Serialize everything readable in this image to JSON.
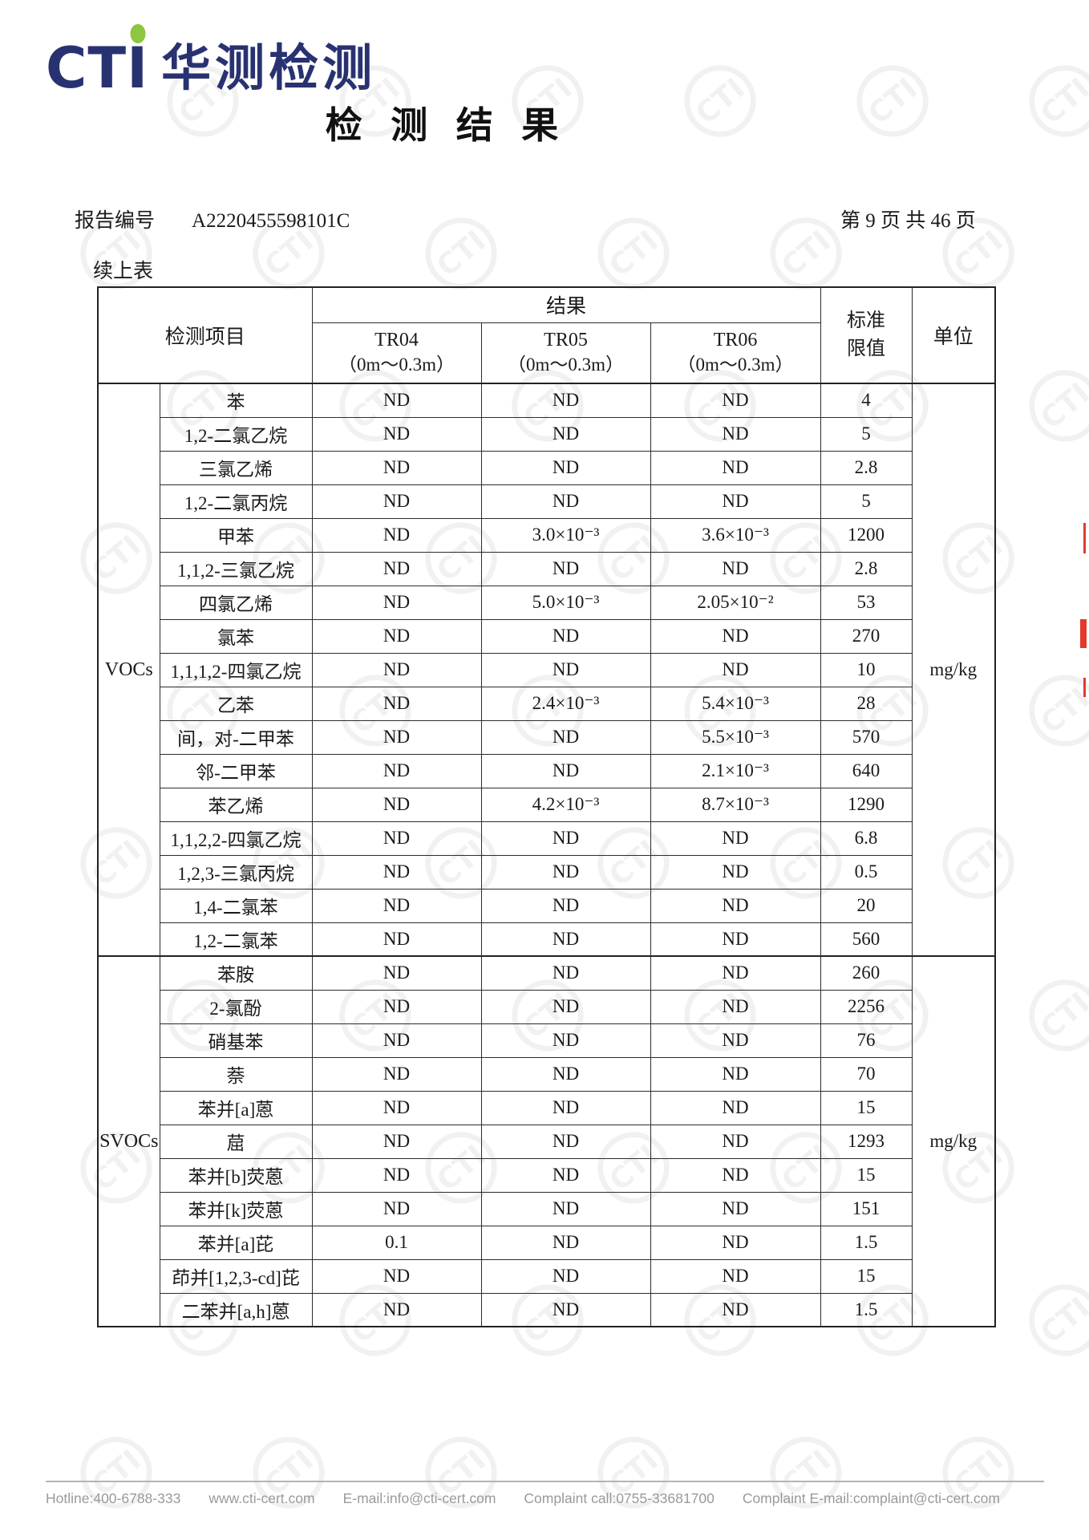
{
  "brand": {
    "logo_latin": "CTI",
    "logo_cn": "华测检测"
  },
  "title": "检 测 结 果",
  "report": {
    "no_label": "报告编号",
    "no_value": "A2220455598101C",
    "page_info": "第 9 页 共 46 页",
    "continued": "续上表"
  },
  "watermark": {
    "text": "CTI"
  },
  "colors": {
    "navy": "#293271",
    "green": "#8dc63f",
    "red": "#e23b2e",
    "footer_gray": "#9a9a9a"
  },
  "table": {
    "header": {
      "item": "检测项目",
      "result": "结果",
      "limit_line1": "标准",
      "limit_line2": "限值",
      "unit": "单位",
      "samples": [
        {
          "id": "TR04",
          "depth": "（0m～0.3m）"
        },
        {
          "id": "TR05",
          "depth": "（0m～0.3m）"
        },
        {
          "id": "TR06",
          "depth": "（0m～0.3m）"
        }
      ]
    },
    "groups": [
      {
        "name": "VOCs",
        "unit": "mg/kg",
        "rows": [
          {
            "name": "苯",
            "tr04": "ND",
            "tr05": "ND",
            "tr06": "ND",
            "limit": "4"
          },
          {
            "name": "1,2-二氯乙烷",
            "tr04": "ND",
            "tr05": "ND",
            "tr06": "ND",
            "limit": "5"
          },
          {
            "name": "三氯乙烯",
            "tr04": "ND",
            "tr05": "ND",
            "tr06": "ND",
            "limit": "2.8"
          },
          {
            "name": "1,2-二氯丙烷",
            "tr04": "ND",
            "tr05": "ND",
            "tr06": "ND",
            "limit": "5"
          },
          {
            "name": "甲苯",
            "tr04": "ND",
            "tr05": "3.0×10⁻³",
            "tr06": "3.6×10⁻³",
            "limit": "1200"
          },
          {
            "name": "1,1,2-三氯乙烷",
            "tr04": "ND",
            "tr05": "ND",
            "tr06": "ND",
            "limit": "2.8"
          },
          {
            "name": "四氯乙烯",
            "tr04": "ND",
            "tr05": "5.0×10⁻³",
            "tr06": "2.05×10⁻²",
            "limit": "53"
          },
          {
            "name": "氯苯",
            "tr04": "ND",
            "tr05": "ND",
            "tr06": "ND",
            "limit": "270"
          },
          {
            "name": "1,1,1,2-四氯乙烷",
            "tr04": "ND",
            "tr05": "ND",
            "tr06": "ND",
            "limit": "10"
          },
          {
            "name": "乙苯",
            "tr04": "ND",
            "tr05": "2.4×10⁻³",
            "tr06": "5.4×10⁻³",
            "limit": "28"
          },
          {
            "name": "间，对-二甲苯",
            "tr04": "ND",
            "tr05": "ND",
            "tr06": "5.5×10⁻³",
            "limit": "570"
          },
          {
            "name": "邻-二甲苯",
            "tr04": "ND",
            "tr05": "ND",
            "tr06": "2.1×10⁻³",
            "limit": "640"
          },
          {
            "name": "苯乙烯",
            "tr04": "ND",
            "tr05": "4.2×10⁻³",
            "tr06": "8.7×10⁻³",
            "limit": "1290"
          },
          {
            "name": "1,1,2,2-四氯乙烷",
            "tr04": "ND",
            "tr05": "ND",
            "tr06": "ND",
            "limit": "6.8"
          },
          {
            "name": "1,2,3-三氯丙烷",
            "tr04": "ND",
            "tr05": "ND",
            "tr06": "ND",
            "limit": "0.5"
          },
          {
            "name": "1,4-二氯苯",
            "tr04": "ND",
            "tr05": "ND",
            "tr06": "ND",
            "limit": "20"
          },
          {
            "name": "1,2-二氯苯",
            "tr04": "ND",
            "tr05": "ND",
            "tr06": "ND",
            "limit": "560"
          }
        ]
      },
      {
        "name": "SVOCs",
        "unit": "mg/kg",
        "rows": [
          {
            "name": "苯胺",
            "tr04": "ND",
            "tr05": "ND",
            "tr06": "ND",
            "limit": "260"
          },
          {
            "name": "2-氯酚",
            "tr04": "ND",
            "tr05": "ND",
            "tr06": "ND",
            "limit": "2256"
          },
          {
            "name": "硝基苯",
            "tr04": "ND",
            "tr05": "ND",
            "tr06": "ND",
            "limit": "76"
          },
          {
            "name": "萘",
            "tr04": "ND",
            "tr05": "ND",
            "tr06": "ND",
            "limit": "70"
          },
          {
            "name": "苯并[a]蒽",
            "tr04": "ND",
            "tr05": "ND",
            "tr06": "ND",
            "limit": "15"
          },
          {
            "name": "䓛",
            "tr04": "ND",
            "tr05": "ND",
            "tr06": "ND",
            "limit": "1293"
          },
          {
            "name": "苯并[b]荧蒽",
            "tr04": "ND",
            "tr05": "ND",
            "tr06": "ND",
            "limit": "15"
          },
          {
            "name": "苯并[k]荧蒽",
            "tr04": "ND",
            "tr05": "ND",
            "tr06": "ND",
            "limit": "151"
          },
          {
            "name": "苯并[a]芘",
            "tr04": "0.1",
            "tr05": "ND",
            "tr06": "ND",
            "limit": "1.5"
          },
          {
            "name": "茚并[1,2,3-cd]芘",
            "tr04": "ND",
            "tr05": "ND",
            "tr06": "ND",
            "limit": "15"
          },
          {
            "name": "二苯并[a,h]蒽",
            "tr04": "ND",
            "tr05": "ND",
            "tr06": "ND",
            "limit": "1.5"
          }
        ]
      }
    ]
  },
  "footer": {
    "items": [
      "Hotline:400-6788-333",
      "www.cti-cert.com",
      "E-mail:info@cti-cert.com",
      "Complaint call:0755-33681700",
      "Complaint E-mail:complaint@cti-cert.com"
    ]
  }
}
